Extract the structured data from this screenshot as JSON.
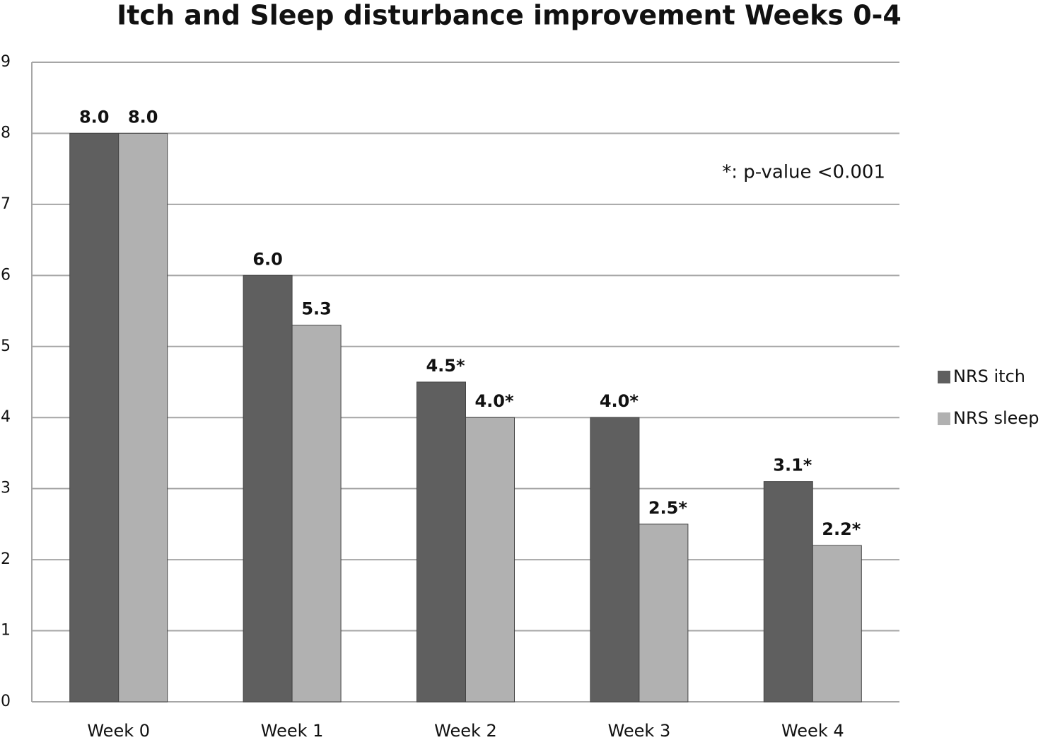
{
  "chart_data": {
    "type": "bar",
    "title": "Itch and Sleep disturbance  improvement Weeks 0-4",
    "annotation": "*:  p-value <0.001",
    "categories": [
      "Week 0",
      "Week 1",
      "Week 2",
      "Week 3",
      "Week 4"
    ],
    "series": [
      {
        "name": "NRS itch",
        "color": "#5f5f5f",
        "values": [
          8.0,
          6.0,
          4.5,
          4.0,
          3.1
        ],
        "value_labels": [
          "8.0",
          "6.0",
          "4.5*",
          "4.0*",
          "3.1*"
        ]
      },
      {
        "name": "NRS sleep",
        "color": "#b1b1b1",
        "values": [
          8.0,
          5.3,
          4.0,
          2.5,
          2.2
        ],
        "value_labels": [
          "8.0",
          "5.3",
          "4.0*",
          "2.5*",
          "2.2*"
        ]
      }
    ],
    "ylim": [
      0,
      9
    ],
    "yticks": [
      0,
      1,
      2,
      3,
      4,
      5,
      6,
      7,
      8,
      9
    ],
    "grid": true,
    "legend": "right"
  }
}
